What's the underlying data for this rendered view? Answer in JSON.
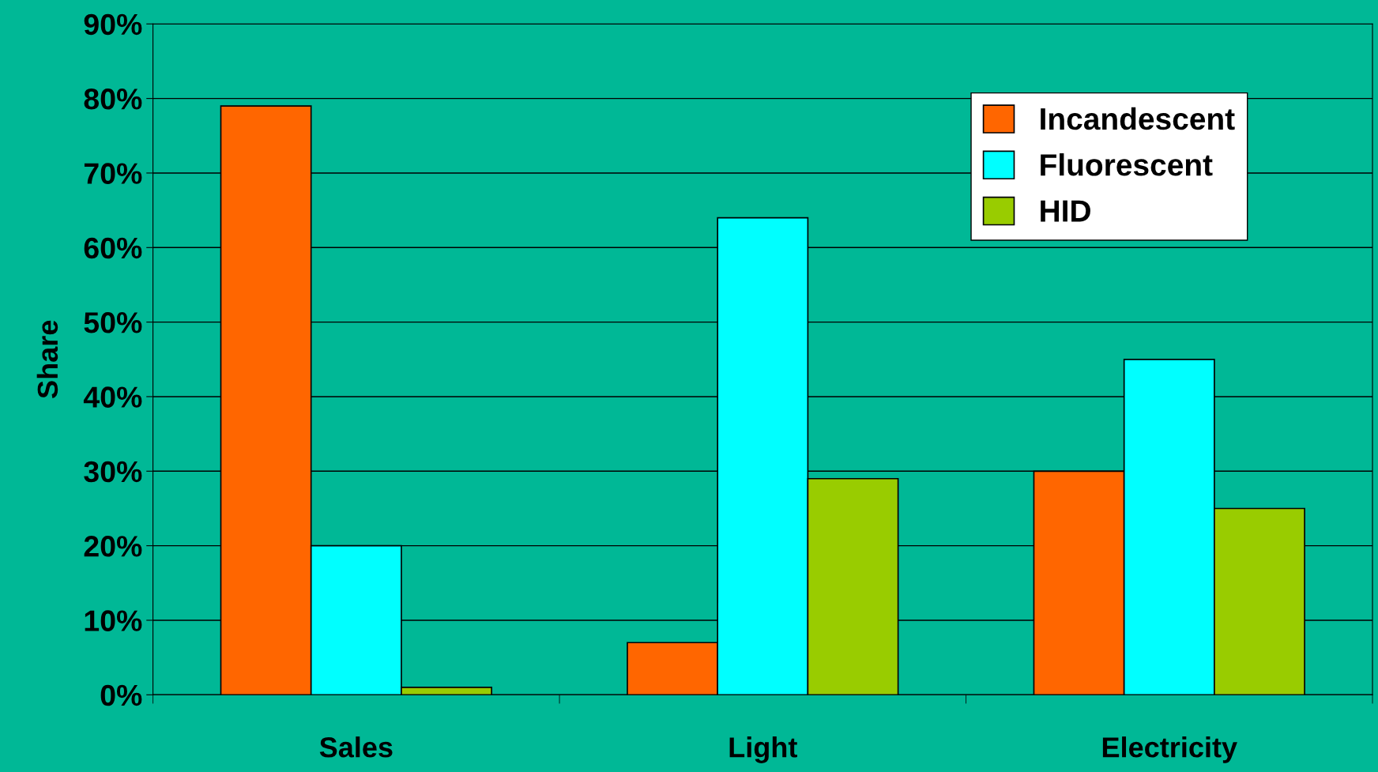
{
  "chart_data": {
    "type": "bar",
    "ylabel": "Share",
    "categories": [
      "Sales",
      "Light",
      "Electricity"
    ],
    "series": [
      {
        "name": "Incandescent",
        "color": "#ff6600",
        "values": [
          79,
          7,
          30
        ]
      },
      {
        "name": "Fluorescent",
        "color": "#00ffff",
        "values": [
          20,
          64,
          45
        ]
      },
      {
        "name": "HID",
        "color": "#99cc00",
        "values": [
          1,
          29,
          25
        ]
      }
    ],
    "ylim": [
      0,
      90
    ],
    "yticks": [
      {
        "value": 0,
        "label": "0%"
      },
      {
        "value": 10,
        "label": "10%"
      },
      {
        "value": 20,
        "label": "20%"
      },
      {
        "value": 30,
        "label": "30%"
      },
      {
        "value": 40,
        "label": "40%"
      },
      {
        "value": 50,
        "label": "50%"
      },
      {
        "value": 60,
        "label": "60%"
      },
      {
        "value": 70,
        "label": "70%"
      },
      {
        "value": 80,
        "label": "80%"
      },
      {
        "value": 90,
        "label": "90%"
      }
    ],
    "grid": "y",
    "legend": "top right"
  }
}
